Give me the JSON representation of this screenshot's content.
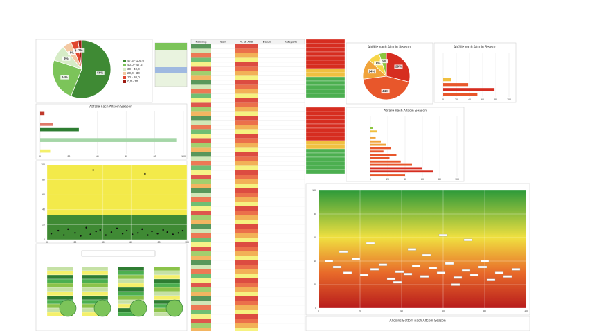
{
  "chart_data": [
    {
      "type": "pie",
      "categories": [
        "47,5 - 100,0",
        "40,0 - 47,5",
        "30 - 40,0",
        "20,0 - 30",
        "10 - 20,0",
        "0,0 - 10"
      ],
      "values": [
        56,
        24,
        9,
        5,
        4,
        2
      ],
      "value_labels": [
        "56%",
        "24%",
        "9%",
        "5%",
        "4%",
        "2%"
      ],
      "colors": [
        "#3f8a34",
        "#7cc45a",
        "#d6ecc6",
        "#f3c8a2",
        "#e0462f",
        "#9e1b12"
      ]
    },
    {
      "type": "bar",
      "orientation": "horizontal",
      "title": "Abfälle nach Altcoin Season",
      "categories": [
        null,
        null,
        null,
        null,
        null,
        null,
        null,
        null
      ],
      "values": [
        3,
        0,
        9,
        27,
        0,
        95,
        0,
        7
      ],
      "colors": [
        "#c0392b",
        "#c0392b",
        "#e07a6a",
        "#2e7d32",
        "#2e7d32",
        "#a5d6a7",
        "#a5d6a7",
        "#f4f06a"
      ],
      "xlim": [
        0,
        100
      ],
      "xticks": [
        0,
        20,
        40,
        60,
        80,
        100
      ],
      "grid": true
    },
    {
      "type": "scatter",
      "color": "#111111",
      "x": [
        3,
        8,
        12,
        15,
        20,
        24,
        28,
        31,
        35,
        38,
        42,
        46,
        50,
        54,
        57,
        61,
        65,
        68,
        72,
        75,
        79,
        83,
        86,
        90,
        94,
        97,
        33,
        70
      ],
      "y": [
        8,
        12,
        6,
        14,
        9,
        5,
        16,
        7,
        11,
        13,
        6,
        10,
        15,
        8,
        12,
        7,
        9,
        14,
        6,
        11,
        8,
        13,
        10,
        7,
        9,
        12,
        93,
        88
      ],
      "xlim": [
        0,
        100
      ],
      "ylim": [
        0,
        100
      ],
      "yticks": [
        0,
        20,
        40,
        60,
        80,
        100
      ],
      "xticks": [
        0,
        20,
        40,
        60,
        80,
        100
      ],
      "grid": true
    },
    {
      "type": "pie",
      "title": "Abfälle nach Altcoin Season",
      "categories": [
        null,
        null,
        null,
        null,
        null
      ],
      "values": [
        29,
        44,
        14,
        8,
        5
      ],
      "value_labels": [
        "29%",
        "44%",
        "14%",
        "8%",
        "5%"
      ],
      "colors": [
        "#d62d20",
        "#e8572b",
        "#f0a33a",
        "#f7d548",
        "#8cc63f"
      ]
    },
    {
      "type": "bar",
      "orientation": "horizontal",
      "title": "Abfälle nach Altcoin Season",
      "categories": [
        null,
        null,
        null,
        null,
        null,
        null,
        null,
        null,
        null
      ],
      "values": [
        0,
        0,
        0,
        0,
        0,
        12,
        38,
        78,
        52
      ],
      "colors": [
        "#e8572b",
        "#e8572b",
        "#e8572b",
        "#e8572b",
        "#e8572b",
        "#f0c040",
        "#e8572b",
        "#d62d20",
        "#e8572b"
      ],
      "xlim": [
        0,
        100
      ],
      "xticks": [
        0,
        20,
        40,
        60,
        80,
        100
      ],
      "grid": true
    },
    {
      "type": "bar",
      "orientation": "horizontal",
      "title": "Abfälle nach Altcoin Season",
      "categories": [
        null,
        null,
        null,
        null,
        null,
        null,
        null,
        null,
        null,
        null,
        null,
        null,
        null,
        null,
        null,
        null,
        null,
        null
      ],
      "values": [
        0,
        0,
        0,
        3,
        8,
        0,
        6,
        12,
        18,
        24,
        15,
        30,
        22,
        35,
        48,
        60,
        72,
        40
      ],
      "colors": [
        "#f0c040",
        "#f0c040",
        "#f0c040",
        "#8cc63f",
        "#f0c040",
        "#f0c040",
        "#f0a33a",
        "#f0a33a",
        "#f0a33a",
        "#e8572b",
        "#e8572b",
        "#e8572b",
        "#e8572b",
        "#e8572b",
        "#e8572b",
        "#d62d20",
        "#d62d20",
        "#e8572b"
      ],
      "xlim": [
        0,
        100
      ],
      "xticks": [
        0,
        20,
        40,
        60,
        80,
        100
      ],
      "grid": true
    },
    {
      "type": "scatter",
      "color": "#ffffff",
      "x": [
        5,
        9,
        14,
        18,
        22,
        27,
        31,
        35,
        39,
        43,
        47,
        51,
        55,
        59,
        63,
        67,
        71,
        75,
        79,
        83,
        87,
        91,
        95,
        12,
        38,
        52,
        66,
        80,
        25,
        45,
        60,
        72
      ],
      "y": [
        40,
        35,
        30,
        42,
        28,
        33,
        37,
        25,
        31,
        29,
        36,
        27,
        34,
        30,
        38,
        26,
        32,
        28,
        35,
        24,
        30,
        27,
        33,
        48,
        22,
        45,
        20,
        40,
        55,
        50,
        62,
        58
      ],
      "xlim": [
        0,
        100
      ],
      "ylim": [
        0,
        100
      ],
      "yticks": [
        0,
        20,
        40,
        60,
        80,
        100
      ],
      "xticks": [
        0,
        20,
        40,
        60,
        80,
        100
      ],
      "grid": true
    },
    {
      "type": "bar",
      "title": "Altcoins Bottom nach Altcoin Season",
      "categories": [],
      "values": []
    }
  ],
  "table": {
    "columns": [
      "Ranking",
      "Coin",
      "% ab Allti",
      "Datum",
      "Kategorie"
    ]
  }
}
